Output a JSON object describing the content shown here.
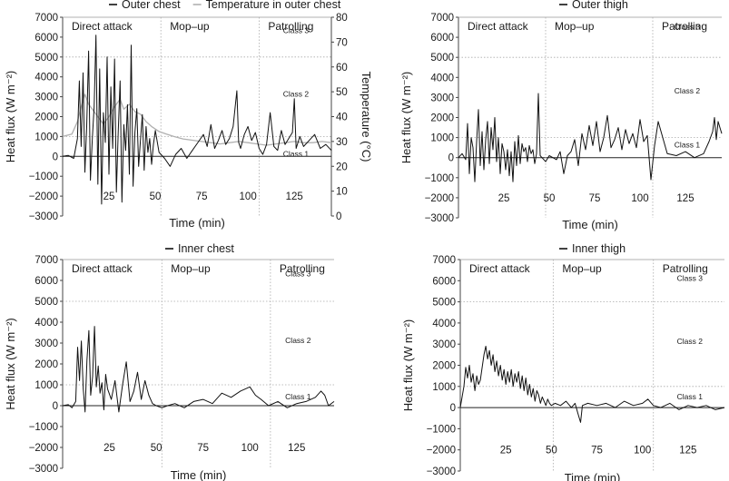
{
  "figure_size": [
    803,
    530
  ],
  "chart_data": [
    {
      "id": "outer_chest",
      "type": "line",
      "legend_position": "top",
      "xlabel": "Time (min)",
      "ylabel": "Heat flux (W m⁻²)",
      "y2label": "Temperature (°C)",
      "xlim": [
        0,
        145
      ],
      "ylim": [
        -3000,
        7000
      ],
      "y2lim": [
        0,
        80
      ],
      "x_ticks": [
        25,
        50,
        75,
        100,
        125
      ],
      "y_ticks": [
        -3000,
        -2000,
        -1000,
        0,
        1000,
        2000,
        3000,
        4000,
        5000,
        6000,
        7000
      ],
      "y2_ticks": [
        0,
        10,
        20,
        30,
        40,
        50,
        60,
        70,
        80
      ],
      "regions": [
        {
          "label": "Direct attack",
          "start": 0,
          "end": 53
        },
        {
          "label": "Mop–up",
          "start": 53,
          "end": 106
        },
        {
          "label": "Patrolling",
          "start": 106,
          "end": 145
        }
      ],
      "class_lines": [
        {
          "label": "Class 1",
          "value": 0,
          "label_y": -20
        },
        {
          "label": "Class 2",
          "value": 1000,
          "label_y": 3000
        },
        {
          "label": "Class 3",
          "value": 5000,
          "label_y": 6200
        }
      ],
      "series": [
        {
          "name": "Outer chest",
          "color": "#111111",
          "axis": "left",
          "x": [
            0,
            3,
            6,
            8,
            9,
            10,
            11,
            12,
            13,
            14,
            15,
            16,
            17,
            18,
            19,
            20,
            21,
            22,
            23,
            24,
            25,
            26,
            27,
            28,
            29,
            30,
            31,
            32,
            33,
            34,
            35,
            36,
            37,
            38,
            39,
            40,
            41,
            42,
            43,
            44,
            45,
            46,
            47,
            48,
            49,
            50,
            52,
            55,
            58,
            61,
            64,
            67,
            70,
            73,
            76,
            78,
            80,
            82,
            84,
            86,
            88,
            90,
            92,
            94,
            95,
            96,
            98,
            100,
            102,
            104,
            106,
            108,
            110,
            112,
            114,
            116,
            118,
            120,
            122,
            124,
            125,
            126,
            128,
            130,
            133,
            136,
            139,
            142,
            145
          ],
          "y": [
            0,
            50,
            -100,
            900,
            3800,
            500,
            4200,
            -800,
            1500,
            5300,
            -1200,
            900,
            2500,
            6100,
            -1400,
            4400,
            -2400,
            2200,
            700,
            5000,
            -900,
            3500,
            400,
            4900,
            -1800,
            1200,
            3800,
            -2300,
            1600,
            300,
            2600,
            -900,
            5600,
            -1500,
            1200,
            2400,
            -500,
            800,
            2100,
            -700,
            1500,
            200,
            900,
            -400,
            600,
            1300,
            200,
            -100,
            -500,
            100,
            400,
            -100,
            300,
            700,
            1100,
            500,
            1600,
            400,
            800,
            1300,
            600,
            900,
            1500,
            3300,
            700,
            400,
            1100,
            1500,
            800,
            1200,
            400,
            100,
            600,
            2200,
            500,
            300,
            1300,
            600,
            900,
            1200,
            2900,
            400,
            1000,
            500,
            800,
            1100,
            400,
            600,
            300
          ]
        },
        {
          "name": "Temperature in outer chest",
          "color": "#b0b0b0",
          "axis": "right",
          "x": [
            0,
            5,
            8,
            10,
            12,
            14,
            16,
            18,
            20,
            22,
            25,
            28,
            31,
            33,
            36,
            39,
            42,
            45,
            48,
            52,
            56,
            60,
            65,
            70,
            75,
            80,
            85,
            90,
            95,
            100,
            105,
            110,
            115,
            120,
            125,
            130,
            135,
            140,
            145
          ],
          "y": [
            32,
            33,
            38,
            44,
            49,
            45,
            43,
            41,
            39,
            37,
            40,
            44,
            47,
            43,
            45,
            42,
            41,
            38,
            36,
            34,
            33,
            32,
            31,
            30.5,
            30,
            29.5,
            29,
            29.5,
            30,
            29.5,
            29,
            28.5,
            29,
            29.5,
            30,
            29.5,
            29.5,
            30,
            29.5
          ]
        }
      ]
    },
    {
      "id": "outer_thigh",
      "type": "line",
      "legend_position": "top",
      "xlabel": "Time (min)",
      "ylabel": "Heat flux (W m⁻²)",
      "xlim": [
        0,
        145
      ],
      "ylim": [
        -3000,
        7000
      ],
      "x_ticks": [
        25,
        50,
        75,
        100,
        125
      ],
      "y_ticks": [
        -3000,
        -2000,
        -1000,
        0,
        1000,
        2000,
        3000,
        4000,
        5000,
        6000,
        7000
      ],
      "regions": [
        {
          "label": "Direct attack",
          "start": 0,
          "end": 48
        },
        {
          "label": "Mop–up",
          "start": 48,
          "end": 107
        },
        {
          "label": "Patrolling",
          "start": 107,
          "end": 145
        }
      ],
      "class_lines": [
        {
          "label": "Class 1",
          "value": 0,
          "label_y": 500
        },
        {
          "label": "Class 2",
          "value": 1000,
          "label_y": 3200
        },
        {
          "label": "Class 3",
          "value": 5000,
          "label_y": 6400
        }
      ],
      "series": [
        {
          "name": "Outer thigh",
          "color": "#111111",
          "x": [
            0,
            2,
            4,
            5,
            6,
            7,
            8,
            9,
            10,
            11,
            12,
            13,
            14,
            15,
            16,
            17,
            18,
            19,
            20,
            21,
            22,
            23,
            24,
            25,
            26,
            27,
            28,
            29,
            30,
            31,
            32,
            33,
            34,
            35,
            36,
            37,
            38,
            39,
            40,
            41,
            42,
            43,
            44,
            45,
            46,
            48,
            50,
            52,
            54,
            56,
            58,
            60,
            62,
            64,
            66,
            68,
            70,
            72,
            74,
            76,
            78,
            80,
            82,
            84,
            86,
            88,
            90,
            92,
            94,
            96,
            98,
            100,
            102,
            104,
            106,
            108,
            110,
            115,
            120,
            125,
            130,
            135,
            138,
            140,
            141,
            142,
            143,
            144,
            145
          ],
          "y": [
            0,
            200,
            -100,
            1700,
            -800,
            1000,
            500,
            -1200,
            800,
            2400,
            -400,
            1300,
            -600,
            900,
            1800,
            -300,
            1500,
            400,
            2000,
            -200,
            1000,
            -800,
            700,
            300,
            -600,
            400,
            -900,
            300,
            -1200,
            800,
            -400,
            1100,
            -300,
            700,
            300,
            500,
            -200,
            600,
            200,
            400,
            -300,
            200,
            3200,
            100,
            0,
            -200,
            100,
            0,
            -100,
            300,
            -800,
            100,
            300,
            900,
            -400,
            1200,
            400,
            1600,
            600,
            1800,
            300,
            1000,
            2100,
            500,
            900,
            1500,
            400,
            1400,
            700,
            1200,
            500,
            1900,
            800,
            1100,
            -1100,
            600,
            1800,
            200,
            100,
            300,
            0,
            200,
            800,
            1300,
            2000,
            900,
            1800,
            1500,
            1200
          ]
        }
      ]
    },
    {
      "id": "inner_chest",
      "type": "line",
      "legend_position": "top",
      "xlabel": "Time (min)",
      "ylabel": "Heat flux (W m⁻²)",
      "xlim": [
        0,
        145
      ],
      "ylim": [
        -3000,
        7000
      ],
      "x_ticks": [
        25,
        50,
        75,
        100,
        125
      ],
      "y_ticks": [
        -3000,
        -2000,
        -1000,
        0,
        1000,
        2000,
        3000,
        4000,
        5000,
        6000,
        7000
      ],
      "regions": [
        {
          "label": "Direct attack",
          "start": 0,
          "end": 53
        },
        {
          "label": "Mop–up",
          "start": 53,
          "end": 111
        },
        {
          "label": "Patrolling",
          "start": 111,
          "end": 145
        }
      ],
      "class_lines": [
        {
          "label": "Class 1",
          "value": 0,
          "label_y": 300
        },
        {
          "label": "Class 2",
          "value": 1000,
          "label_y": 3000
        },
        {
          "label": "Class 3",
          "value": 5000,
          "label_y": 6200
        }
      ],
      "series": [
        {
          "name": "Inner chest",
          "color": "#111111",
          "x": [
            0,
            3,
            5,
            7,
            8,
            9,
            10,
            11,
            12,
            13,
            14,
            15,
            16,
            17,
            18,
            19,
            20,
            21,
            22,
            23,
            24,
            26,
            28,
            30,
            32,
            34,
            36,
            38,
            40,
            42,
            44,
            46,
            48,
            50,
            53,
            56,
            60,
            65,
            70,
            75,
            80,
            85,
            90,
            95,
            100,
            103,
            106,
            110,
            115,
            120,
            125,
            130,
            135,
            138,
            140,
            142,
            145
          ],
          "y": [
            0,
            50,
            -100,
            200,
            2800,
            1200,
            3100,
            800,
            -300,
            2200,
            3600,
            500,
            1400,
            3800,
            900,
            1900,
            600,
            1100,
            -200,
            1500,
            800,
            300,
            1200,
            -300,
            1000,
            2100,
            200,
            700,
            1600,
            300,
            1200,
            500,
            100,
            0,
            -100,
            0,
            100,
            -100,
            200,
            300,
            100,
            600,
            400,
            700,
            900,
            500,
            300,
            0,
            200,
            -100,
            100,
            200,
            400,
            700,
            500,
            0,
            200
          ]
        }
      ]
    },
    {
      "id": "inner_thigh",
      "type": "line",
      "legend_position": "top",
      "xlabel": "Time (min)",
      "ylabel": "Heat flux (W m⁻²)",
      "xlim": [
        0,
        145
      ],
      "ylim": [
        -3000,
        7000
      ],
      "x_ticks": [
        25,
        50,
        75,
        100,
        125
      ],
      "y_ticks": [
        -3000,
        -2000,
        -1000,
        0,
        1000,
        2000,
        3000,
        4000,
        5000,
        6000,
        7000
      ],
      "regions": [
        {
          "label": "Direct attack",
          "start": 0,
          "end": 51
        },
        {
          "label": "Mop–up",
          "start": 51,
          "end": 106
        },
        {
          "label": "Patrolling",
          "start": 106,
          "end": 145
        }
      ],
      "class_lines": [
        {
          "label": "Class 1",
          "value": 0,
          "label_y": 400
        },
        {
          "label": "Class 2",
          "value": 1000,
          "label_y": 3000
        },
        {
          "label": "Class 3",
          "value": 5000,
          "label_y": 6000
        }
      ],
      "series": [
        {
          "name": "Inner thigh",
          "color": "#111111",
          "x": [
            0,
            2,
            3,
            4,
            5,
            6,
            7,
            8,
            9,
            10,
            11,
            12,
            13,
            14,
            15,
            16,
            17,
            18,
            19,
            20,
            21,
            22,
            23,
            24,
            25,
            26,
            27,
            28,
            29,
            30,
            31,
            32,
            33,
            34,
            35,
            36,
            37,
            38,
            39,
            40,
            41,
            42,
            43,
            44,
            45,
            46,
            47,
            48,
            49,
            50,
            52,
            55,
            58,
            61,
            63,
            65,
            66,
            67,
            70,
            75,
            80,
            85,
            90,
            95,
            100,
            103,
            106,
            110,
            115,
            120,
            125,
            130,
            135,
            140,
            145
          ],
          "y": [
            0,
            1000,
            1900,
            1400,
            2000,
            1200,
            1600,
            800,
            1500,
            1100,
            1300,
            1900,
            2500,
            2900,
            2300,
            2700,
            2000,
            2500,
            1700,
            2200,
            1500,
            2000,
            1300,
            1800,
            1100,
            1700,
            1200,
            1800,
            1000,
            1600,
            1200,
            1700,
            900,
            1500,
            800,
            1400,
            600,
            1100,
            500,
            900,
            300,
            800,
            600,
            200,
            500,
            300,
            100,
            400,
            200,
            100,
            200,
            100,
            300,
            0,
            200,
            -400,
            -700,
            100,
            200,
            100,
            200,
            0,
            300,
            100,
            200,
            400,
            100,
            0,
            200,
            -100,
            100,
            0,
            100,
            -100,
            0
          ]
        }
      ]
    }
  ]
}
